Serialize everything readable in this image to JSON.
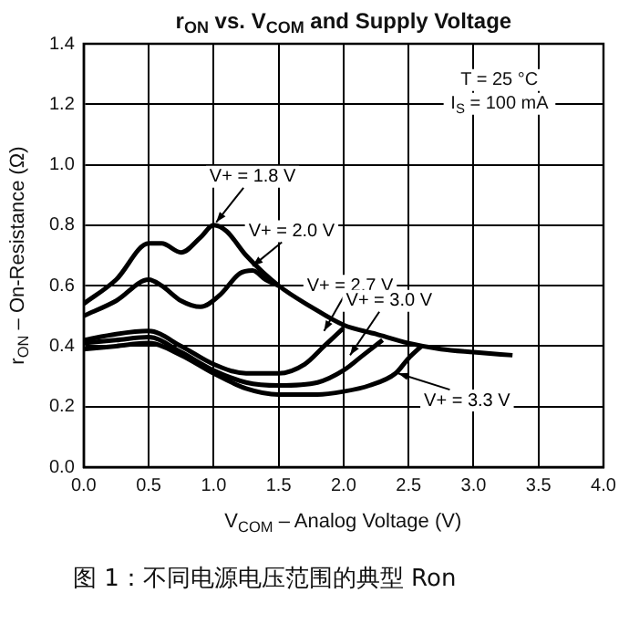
{
  "chart_data": {
    "type": "line",
    "title": "r$_{ON}$ vs. V$_{COM}$ and Supply Voltage",
    "xlabel": "V$_{COM}$ – Analog Voltage (V)",
    "ylabel": "r$_{ON}$ – On-Resistance (Ω)",
    "xlim": [
      0,
      4
    ],
    "xticks": [
      {
        "value": 0,
        "label": "0.0"
      },
      {
        "value": 0.5,
        "label": "0.5"
      },
      {
        "value": 1,
        "label": "1.0"
      },
      {
        "value": 1.5,
        "label": "1.5"
      },
      {
        "value": 2,
        "label": "2.0"
      },
      {
        "value": 2.5,
        "label": "2.5"
      },
      {
        "value": 3,
        "label": "3.0"
      },
      {
        "value": 3.5,
        "label": "3.5"
      },
      {
        "value": 4,
        "label": "4.0"
      }
    ],
    "ylim": [
      0,
      1.4
    ],
    "yticks": [
      {
        "value": 0,
        "label": "0.0"
      },
      {
        "value": 0.2,
        "label": "0.2"
      },
      {
        "value": 0.4,
        "label": "0.4"
      },
      {
        "value": 0.6,
        "label": "0.6"
      },
      {
        "value": 0.8,
        "label": "0.8"
      },
      {
        "value": 1,
        "label": "1.0"
      },
      {
        "value": 1.2,
        "label": "1.2"
      },
      {
        "value": 1.4,
        "label": "1.4"
      }
    ],
    "grid": true,
    "legend": false,
    "marker": "none",
    "line_style": "solid",
    "series": [
      {
        "name": "V+ = 1.8 V",
        "color": "#000000",
        "x": [
          0,
          0.25,
          0.5,
          0.6,
          0.75,
          0.9,
          1.0,
          1.1,
          1.25,
          1.5,
          1.75,
          2.0,
          2.25,
          2.5,
          2.75,
          3.0,
          3.3
        ],
        "values": [
          0.54,
          0.62,
          0.74,
          0.74,
          0.71,
          0.76,
          0.8,
          0.78,
          0.7,
          0.6,
          0.53,
          0.47,
          0.44,
          0.41,
          0.39,
          0.38,
          0.37
        ]
      },
      {
        "name": "V+ = 2.0 V",
        "color": "#000000",
        "x": [
          0,
          0.25,
          0.5,
          0.6,
          0.75,
          0.9,
          1.05,
          1.2,
          1.3,
          1.4,
          1.5
        ],
        "values": [
          0.5,
          0.55,
          0.62,
          0.6,
          0.55,
          0.53,
          0.57,
          0.64,
          0.65,
          0.62,
          0.6
        ]
      },
      {
        "name": "V+ = 2.7 V",
        "color": "#000000",
        "x": [
          0,
          0.25,
          0.5,
          0.75,
          1.0,
          1.25,
          1.5,
          1.7,
          1.85,
          2.0
        ],
        "values": [
          0.42,
          0.44,
          0.45,
          0.4,
          0.34,
          0.31,
          0.31,
          0.34,
          0.4,
          0.46
        ]
      },
      {
        "name": "V+ = 3.0 V",
        "color": "#000000",
        "x": [
          0,
          0.25,
          0.5,
          0.75,
          1.0,
          1.25,
          1.5,
          1.8,
          2.0,
          2.15,
          2.3
        ],
        "values": [
          0.41,
          0.42,
          0.43,
          0.38,
          0.32,
          0.28,
          0.27,
          0.28,
          0.32,
          0.37,
          0.42
        ]
      },
      {
        "name": "V+ = 3.3 V",
        "color": "#000000",
        "x": [
          0,
          0.25,
          0.5,
          0.75,
          1.0,
          1.25,
          1.5,
          1.8,
          2.0,
          2.2,
          2.4,
          2.5,
          2.6
        ],
        "values": [
          0.39,
          0.4,
          0.41,
          0.37,
          0.31,
          0.26,
          0.24,
          0.24,
          0.25,
          0.27,
          0.31,
          0.36,
          0.4
        ]
      }
    ],
    "annotations": [
      "T = 25 °C",
      "I$_{S}$ = 100 mA",
      "图 1：不同电源电压范围的典型 Ron"
    ]
  }
}
